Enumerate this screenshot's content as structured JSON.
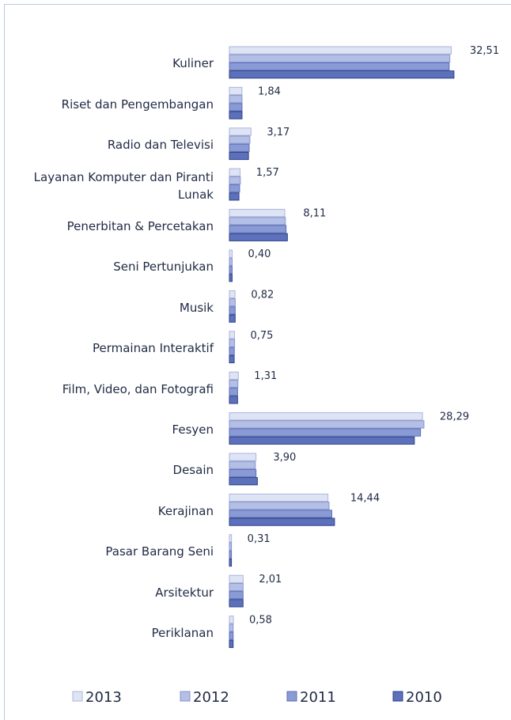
{
  "chart_data": {
    "type": "bar",
    "orientation": "horizontal",
    "categories": [
      "Kuliner",
      "Riset dan Pengembangan",
      "Radio dan Televisi",
      "Layanan Komputer dan Piranti Lunak",
      "Penerbitan & Percetakan",
      "Seni Pertunjukan",
      "Musik",
      "Permainan Interaktif",
      "Film, Video, dan Fotografi",
      "Fesyen",
      "Desain",
      "Kerajinan",
      "Pasar Barang Seni",
      "Arsitektur",
      "Periklanan"
    ],
    "series": [
      {
        "name": "2013",
        "color": "#dfe4f4",
        "values": [
          32.51,
          1.84,
          3.17,
          1.57,
          8.11,
          0.4,
          0.82,
          0.75,
          1.31,
          28.29,
          3.9,
          14.44,
          0.31,
          2.01,
          0.58
        ],
        "value_labels": [
          "32,51",
          "1,84",
          "3,17",
          "1,57",
          "8,11",
          "0,40",
          "0,82",
          "0,75",
          "1,31",
          "28,29",
          "3,90",
          "14,44",
          "0,31",
          "2,01",
          "0,58"
        ]
      },
      {
        "name": "2012",
        "color": "#b4bfe6",
        "values": [
          32.3,
          1.85,
          3.0,
          1.6,
          8.2,
          0.4,
          0.85,
          0.75,
          1.25,
          28.5,
          3.8,
          14.6,
          0.3,
          2.0,
          0.55
        ]
      },
      {
        "name": "2011",
        "color": "#8a9ad4",
        "values": [
          32.2,
          1.85,
          2.9,
          1.5,
          8.3,
          0.4,
          0.85,
          0.72,
          1.2,
          28.0,
          3.9,
          15.0,
          0.3,
          2.0,
          0.55
        ]
      },
      {
        "name": "2010",
        "color": "#5d70bb",
        "values": [
          32.9,
          1.85,
          2.8,
          1.4,
          8.5,
          0.4,
          0.85,
          0.7,
          1.2,
          27.1,
          4.1,
          15.4,
          0.3,
          2.0,
          0.55
        ]
      }
    ],
    "xlim": [
      0,
      35
    ],
    "legend": "bottom"
  }
}
